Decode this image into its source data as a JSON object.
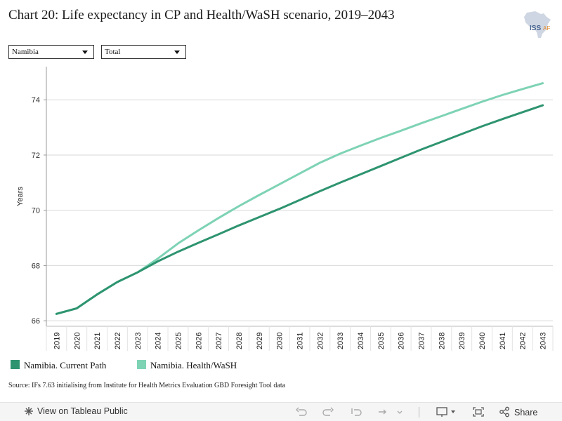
{
  "title": "Chart 20: Life expectancy in CP and Health/WaSH scenario, 2019–2043",
  "logo_text": "ISS AFRICA",
  "filters": {
    "country": "Namibia",
    "type": "Total"
  },
  "source": "Source: IFs 7.63 initialising from Institute for Health Metrics Evaluation GBD Foresight Tool data",
  "toolbar": {
    "view_label": "View on Tableau Public",
    "share_label": "Share"
  },
  "chart_data": {
    "type": "line",
    "ylabel": "Years",
    "ylim": [
      65.8,
      75.2
    ],
    "yticks": [
      66,
      68,
      70,
      72,
      74
    ],
    "grid": true,
    "legend_position": "bottom-left",
    "x": [
      "2019",
      "2020",
      "2021",
      "2022",
      "2023",
      "2024",
      "2025",
      "2026",
      "2027",
      "2028",
      "2029",
      "2030",
      "2031",
      "2032",
      "2033",
      "2034",
      "2035",
      "2036",
      "2037",
      "2038",
      "2039",
      "2040",
      "2041",
      "2042",
      "2043"
    ],
    "series": [
      {
        "name": "Namibia. Current Path",
        "color": "#2e9470",
        "values": [
          66.25,
          66.45,
          66.95,
          67.4,
          67.75,
          68.15,
          68.5,
          68.82,
          69.13,
          69.45,
          69.75,
          70.05,
          70.37,
          70.69,
          71.0,
          71.3,
          71.6,
          71.9,
          72.2,
          72.48,
          72.76,
          73.04,
          73.3,
          73.55,
          73.8
        ]
      },
      {
        "name": "Namibia. Health/WaSH",
        "color": "#7ed3b5",
        "values": [
          66.25,
          66.45,
          66.95,
          67.4,
          67.75,
          68.25,
          68.8,
          69.27,
          69.72,
          70.15,
          70.55,
          70.94,
          71.33,
          71.72,
          72.05,
          72.34,
          72.62,
          72.88,
          73.15,
          73.41,
          73.67,
          73.93,
          74.17,
          74.39,
          74.6
        ]
      }
    ]
  }
}
